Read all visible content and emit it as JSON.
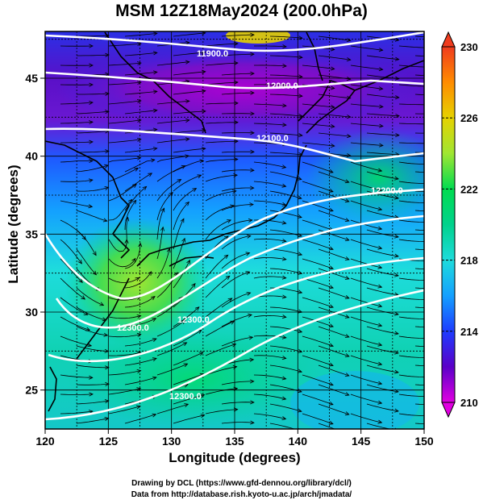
{
  "title": "MSM 12Z18May2024 (200.0hPa)",
  "xlabel": "Longitude (degrees)",
  "ylabel": "Latitude  (degrees)",
  "x_ticks": [
    "120",
    "125",
    "130",
    "135",
    "140",
    "145",
    "150"
  ],
  "y_ticks": [
    "25",
    "30",
    "35",
    "40",
    "45"
  ],
  "colorbar": {
    "min": 210,
    "max": 230,
    "ticks": [
      "230",
      "226",
      "222",
      "218",
      "214",
      "210"
    ],
    "stops": [
      "#e100e1",
      "#5a00c8",
      "#1e3cff",
      "#14a0ff",
      "#1edcdc",
      "#00d28c",
      "#00dc50",
      "#a0e632",
      "#e6d200",
      "#ff8c00",
      "#f03c1e"
    ]
  },
  "contours": [
    {
      "label": "11900.0"
    },
    {
      "label": "12000.0"
    },
    {
      "label": "12100.0"
    },
    {
      "label": "12200.0"
    },
    {
      "label": "12300.0"
    },
    {
      "label": "12300.0"
    },
    {
      "label": "12300.0"
    }
  ],
  "credits": [
    "Drawing by DCL (https://www.gfd-dennou.org/library/dcl/)",
    "Data from http://database.rish.kyoto-u.ac.jp/arch/jmadata/"
  ]
}
